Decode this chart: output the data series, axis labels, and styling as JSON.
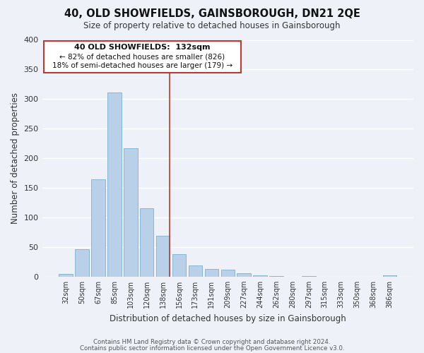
{
  "title": "40, OLD SHOWFIELDS, GAINSBOROUGH, DN21 2QE",
  "subtitle": "Size of property relative to detached houses in Gainsborough",
  "xlabel": "Distribution of detached houses by size in Gainsborough",
  "ylabel": "Number of detached properties",
  "bar_labels": [
    "32sqm",
    "50sqm",
    "67sqm",
    "85sqm",
    "103sqm",
    "120sqm",
    "138sqm",
    "156sqm",
    "173sqm",
    "191sqm",
    "209sqm",
    "227sqm",
    "244sqm",
    "262sqm",
    "280sqm",
    "297sqm",
    "315sqm",
    "333sqm",
    "350sqm",
    "368sqm",
    "386sqm"
  ],
  "bar_values": [
    5,
    46,
    164,
    311,
    217,
    115,
    69,
    38,
    19,
    13,
    12,
    6,
    2,
    1,
    0,
    1,
    0,
    0,
    0,
    0,
    2
  ],
  "highlight_bar_index": 6,
  "highlight_color": "#c0392b",
  "bar_color": "#b8d0e8",
  "bar_edge_color": "#7bafd4",
  "background_color": "#eef2f8",
  "annotation_title": "40 OLD SHOWFIELDS:  132sqm",
  "annotation_line1": "← 82% of detached houses are smaller (826)",
  "annotation_line2": "18% of semi-detached houses are larger (179) →",
  "annotation_box_color": "#ffffff",
  "annotation_box_edge": "#c0392b",
  "ylim": [
    0,
    400
  ],
  "yticks": [
    0,
    50,
    100,
    150,
    200,
    250,
    300,
    350,
    400
  ],
  "footer1": "Contains HM Land Registry data © Crown copyright and database right 2024.",
  "footer2": "Contains public sector information licensed under the Open Government Licence v3.0."
}
